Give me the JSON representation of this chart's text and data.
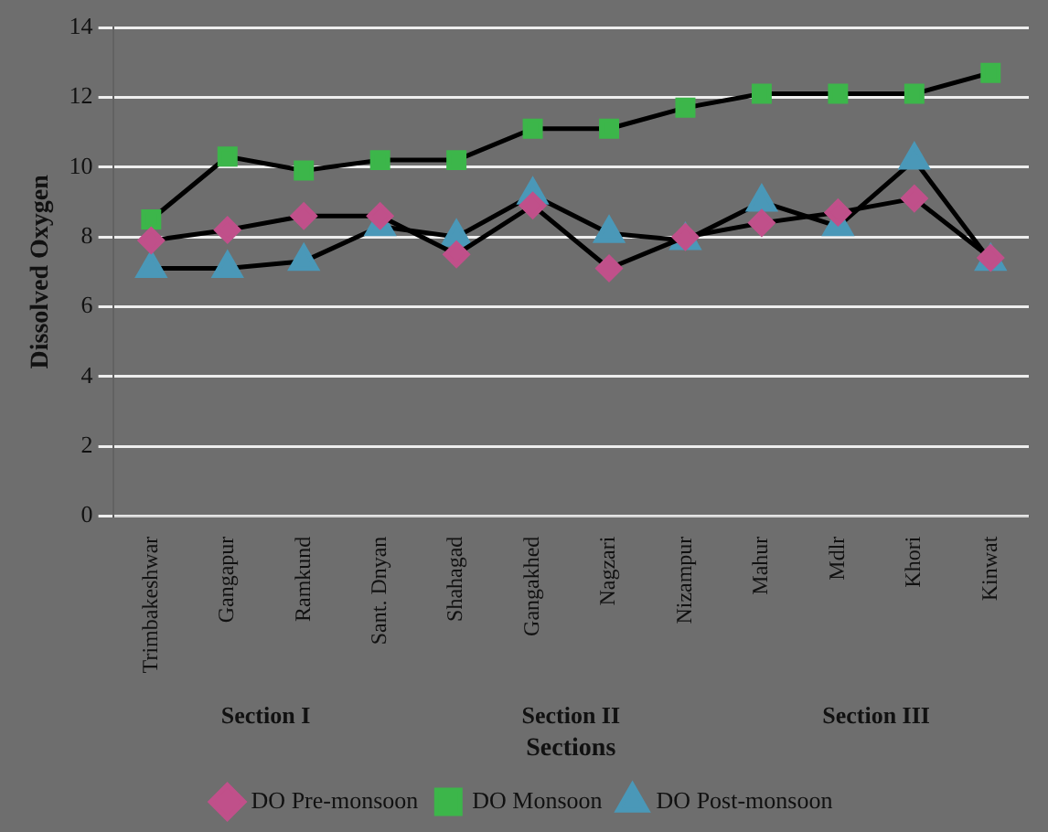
{
  "chart_data": {
    "type": "line",
    "xlabel": "Sections",
    "ylabel": "Dissolved Oxygen",
    "categories": [
      "Trimbakeshwar",
      "Gangapur",
      "Ramkund",
      "Sant. Dnyan",
      "Shahagad",
      "Gangakhed",
      "Nagzari",
      "Nizampur",
      "Mahur",
      "Mdlr",
      "Khori",
      "Kinwat"
    ],
    "series": [
      {
        "name": "DO Pre-monsoon",
        "color": "#c0508a",
        "marker": "diamond",
        "values": [
          7.9,
          8.2,
          8.6,
          8.6,
          7.5,
          8.9,
          7.1,
          8.0,
          8.4,
          8.7,
          9.1,
          7.4
        ]
      },
      {
        "name": "DO Monsoon",
        "color": "#3cb64a",
        "marker": "square",
        "values": [
          8.5,
          10.3,
          9.9,
          10.2,
          10.2,
          11.1,
          11.1,
          11.7,
          12.1,
          12.1,
          12.1,
          12.7
        ]
      },
      {
        "name": "DO Post-monsoon",
        "color": "#4a98b8",
        "marker": "triangle",
        "values": [
          7.1,
          7.1,
          7.3,
          8.3,
          8.0,
          9.2,
          8.1,
          7.9,
          9.0,
          8.3,
          10.2,
          7.3
        ]
      }
    ],
    "ylim": [
      0,
      14
    ],
    "yticks": [
      0,
      2,
      4,
      6,
      8,
      10,
      12,
      14
    ],
    "grid": "y",
    "legend": "bottom",
    "annotations": [
      "Section I",
      "Section II",
      "Section III"
    ]
  }
}
